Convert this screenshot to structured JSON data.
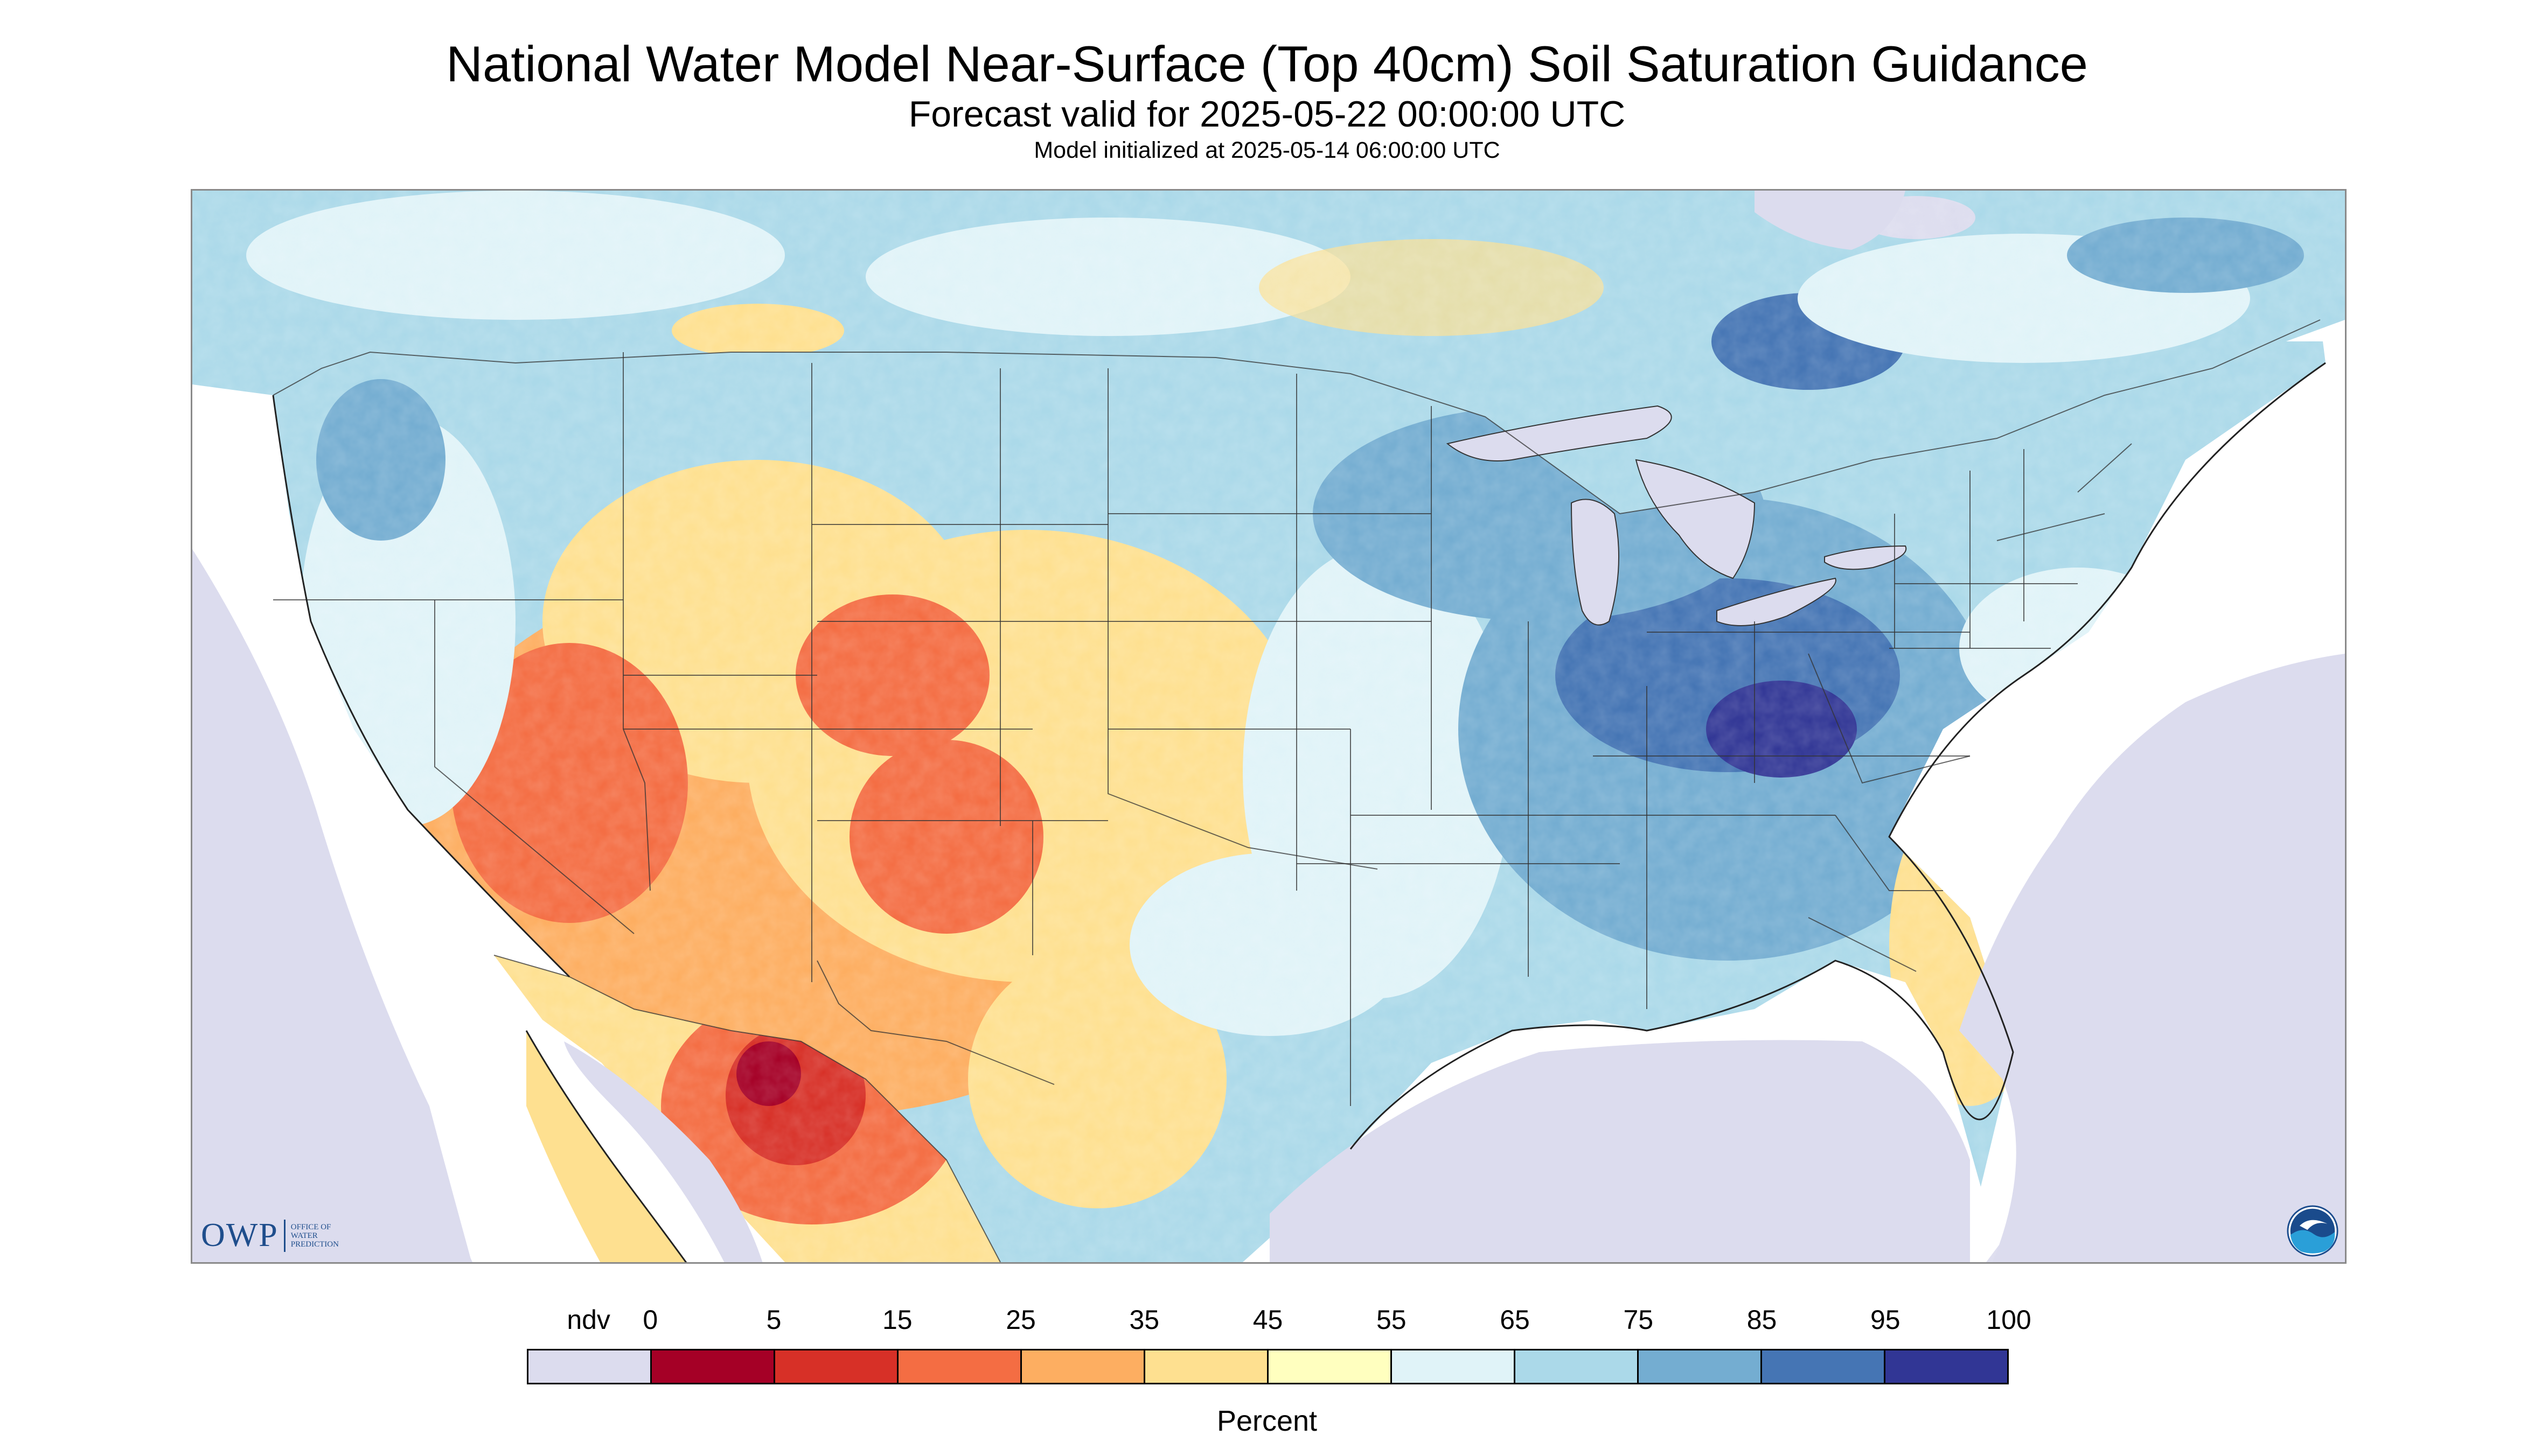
{
  "header": {
    "title": "National Water Model Near-Surface (Top 40cm) Soil Saturation Guidance",
    "subtitle": "Forecast valid for 2025-05-22 00:00:00 UTC",
    "init_line": "Model initialized at 2025-05-14 06:00:00 UTC"
  },
  "map": {
    "region": "CONUS",
    "background_color": "#dcdcee",
    "logos": {
      "owp": {
        "letters": "OWP",
        "line1": "OFFICE OF",
        "line2": "WATER",
        "line3": "PREDICTION"
      },
      "noaa": {
        "icon": "noaa-logo-icon"
      }
    }
  },
  "legend": {
    "unit": "Percent",
    "labels": [
      "ndv",
      "0",
      "5",
      "15",
      "25",
      "35",
      "45",
      "55",
      "65",
      "75",
      "85",
      "95",
      "100"
    ],
    "bins": [
      {
        "range": "ndv",
        "color": "#dcdcee"
      },
      {
        "range": "0-5",
        "color": "#a50026"
      },
      {
        "range": "5-15",
        "color": "#d73027"
      },
      {
        "range": "15-25",
        "color": "#f46d43"
      },
      {
        "range": "25-35",
        "color": "#fdae61"
      },
      {
        "range": "35-45",
        "color": "#fee090"
      },
      {
        "range": "45-55",
        "color": "#ffffbf"
      },
      {
        "range": "55-65",
        "color": "#e0f3f8"
      },
      {
        "range": "65-75",
        "color": "#abd9e9"
      },
      {
        "range": "75-85",
        "color": "#74add1"
      },
      {
        "range": "85-95",
        "color": "#4575b4"
      },
      {
        "range": "95-100",
        "color": "#313695"
      }
    ]
  }
}
